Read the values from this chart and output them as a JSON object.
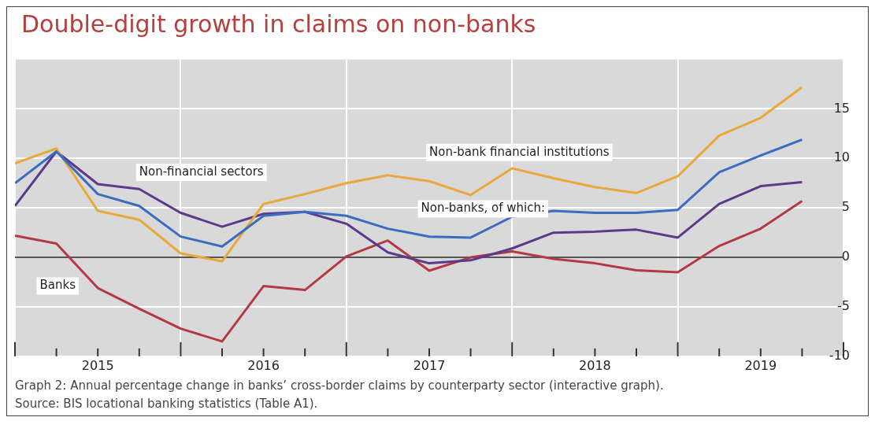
{
  "chart_data": {
    "type": "line",
    "title": "Double-digit growth in claims on non-banks",
    "x": [
      2015,
      2015.25,
      2015.5,
      2015.75,
      2016,
      2016.25,
      2016.5,
      2016.75,
      2017,
      2017.25,
      2017.5,
      2017.75,
      2018,
      2018.25,
      2018.5,
      2018.75,
      2019,
      2019.25,
      2019.5,
      2019.75
    ],
    "xlim": [
      2015,
      2020
    ],
    "xticks": [
      {
        "value": 2015,
        "label": null
      },
      {
        "value": 2015.25,
        "label": null
      },
      {
        "value": 2015.5,
        "label": "2015"
      },
      {
        "value": 2015.75,
        "label": null
      },
      {
        "value": 2016,
        "label": null
      },
      {
        "value": 2016.25,
        "label": null
      },
      {
        "value": 2016.5,
        "label": "2016"
      },
      {
        "value": 2016.75,
        "label": null
      },
      {
        "value": 2017,
        "label": null
      },
      {
        "value": 2017.25,
        "label": null
      },
      {
        "value": 2017.5,
        "label": "2017"
      },
      {
        "value": 2017.75,
        "label": null
      },
      {
        "value": 2018,
        "label": null
      },
      {
        "value": 2018.25,
        "label": null
      },
      {
        "value": 2018.5,
        "label": "2018"
      },
      {
        "value": 2018.75,
        "label": null
      },
      {
        "value": 2019,
        "label": null
      },
      {
        "value": 2019.25,
        "label": null
      },
      {
        "value": 2019.5,
        "label": "2019"
      },
      {
        "value": 2019.75,
        "label": null
      },
      {
        "value": 2020,
        "label": null
      }
    ],
    "ylim": [
      -10,
      20
    ],
    "yticks": [
      -10,
      -5,
      0,
      5,
      10,
      15
    ],
    "series": [
      {
        "name": "Non-banks, of which:",
        "color": "#3a6cc0",
        "values": [
          7.5,
          10.7,
          6.4,
          5.2,
          2.1,
          1.1,
          4.2,
          4.6,
          4.2,
          2.9,
          2.1,
          2.0,
          4.1,
          4.7,
          4.5,
          4.5,
          4.8,
          8.6,
          10.3,
          11.9
        ]
      },
      {
        "name": "Non-bank financial institutions",
        "color": "#e8a93a",
        "values": [
          9.5,
          11.0,
          4.7,
          3.8,
          0.4,
          -0.4,
          5.4,
          6.4,
          7.5,
          8.3,
          7.7,
          6.3,
          9.0,
          8.0,
          7.1,
          6.5,
          8.2,
          12.3,
          14.1,
          17.2
        ]
      },
      {
        "name": "Non-financial sectors",
        "color": "#5b3a8c",
        "values": [
          5.2,
          10.7,
          7.4,
          6.9,
          4.5,
          3.1,
          4.4,
          4.6,
          3.4,
          0.5,
          -0.6,
          -0.3,
          0.9,
          2.5,
          2.6,
          2.8,
          2.0,
          5.4,
          7.2,
          7.6
        ]
      },
      {
        "name": "Banks",
        "color": "#b33a45",
        "values": [
          2.2,
          1.4,
          -3.1,
          -5.2,
          -7.2,
          -8.5,
          -2.9,
          -3.3,
          0.1,
          1.7,
          -1.35,
          0,
          0.6,
          -0.15,
          -0.6,
          -1.3,
          -1.5,
          1.15,
          2.9,
          5.7
        ]
      }
    ],
    "ref_lines": [
      {
        "axis": "y",
        "value": 0,
        "color": "#555555"
      }
    ],
    "grid": true,
    "legend": false,
    "marker": "none",
    "line_style": "solid",
    "annotations": [
      "Graph 2: Annual percentage change in banks’ cross-border claims by counterparty sector (interactive graph).",
      "Source: BIS locational banking statistics (Table A1)."
    ]
  }
}
